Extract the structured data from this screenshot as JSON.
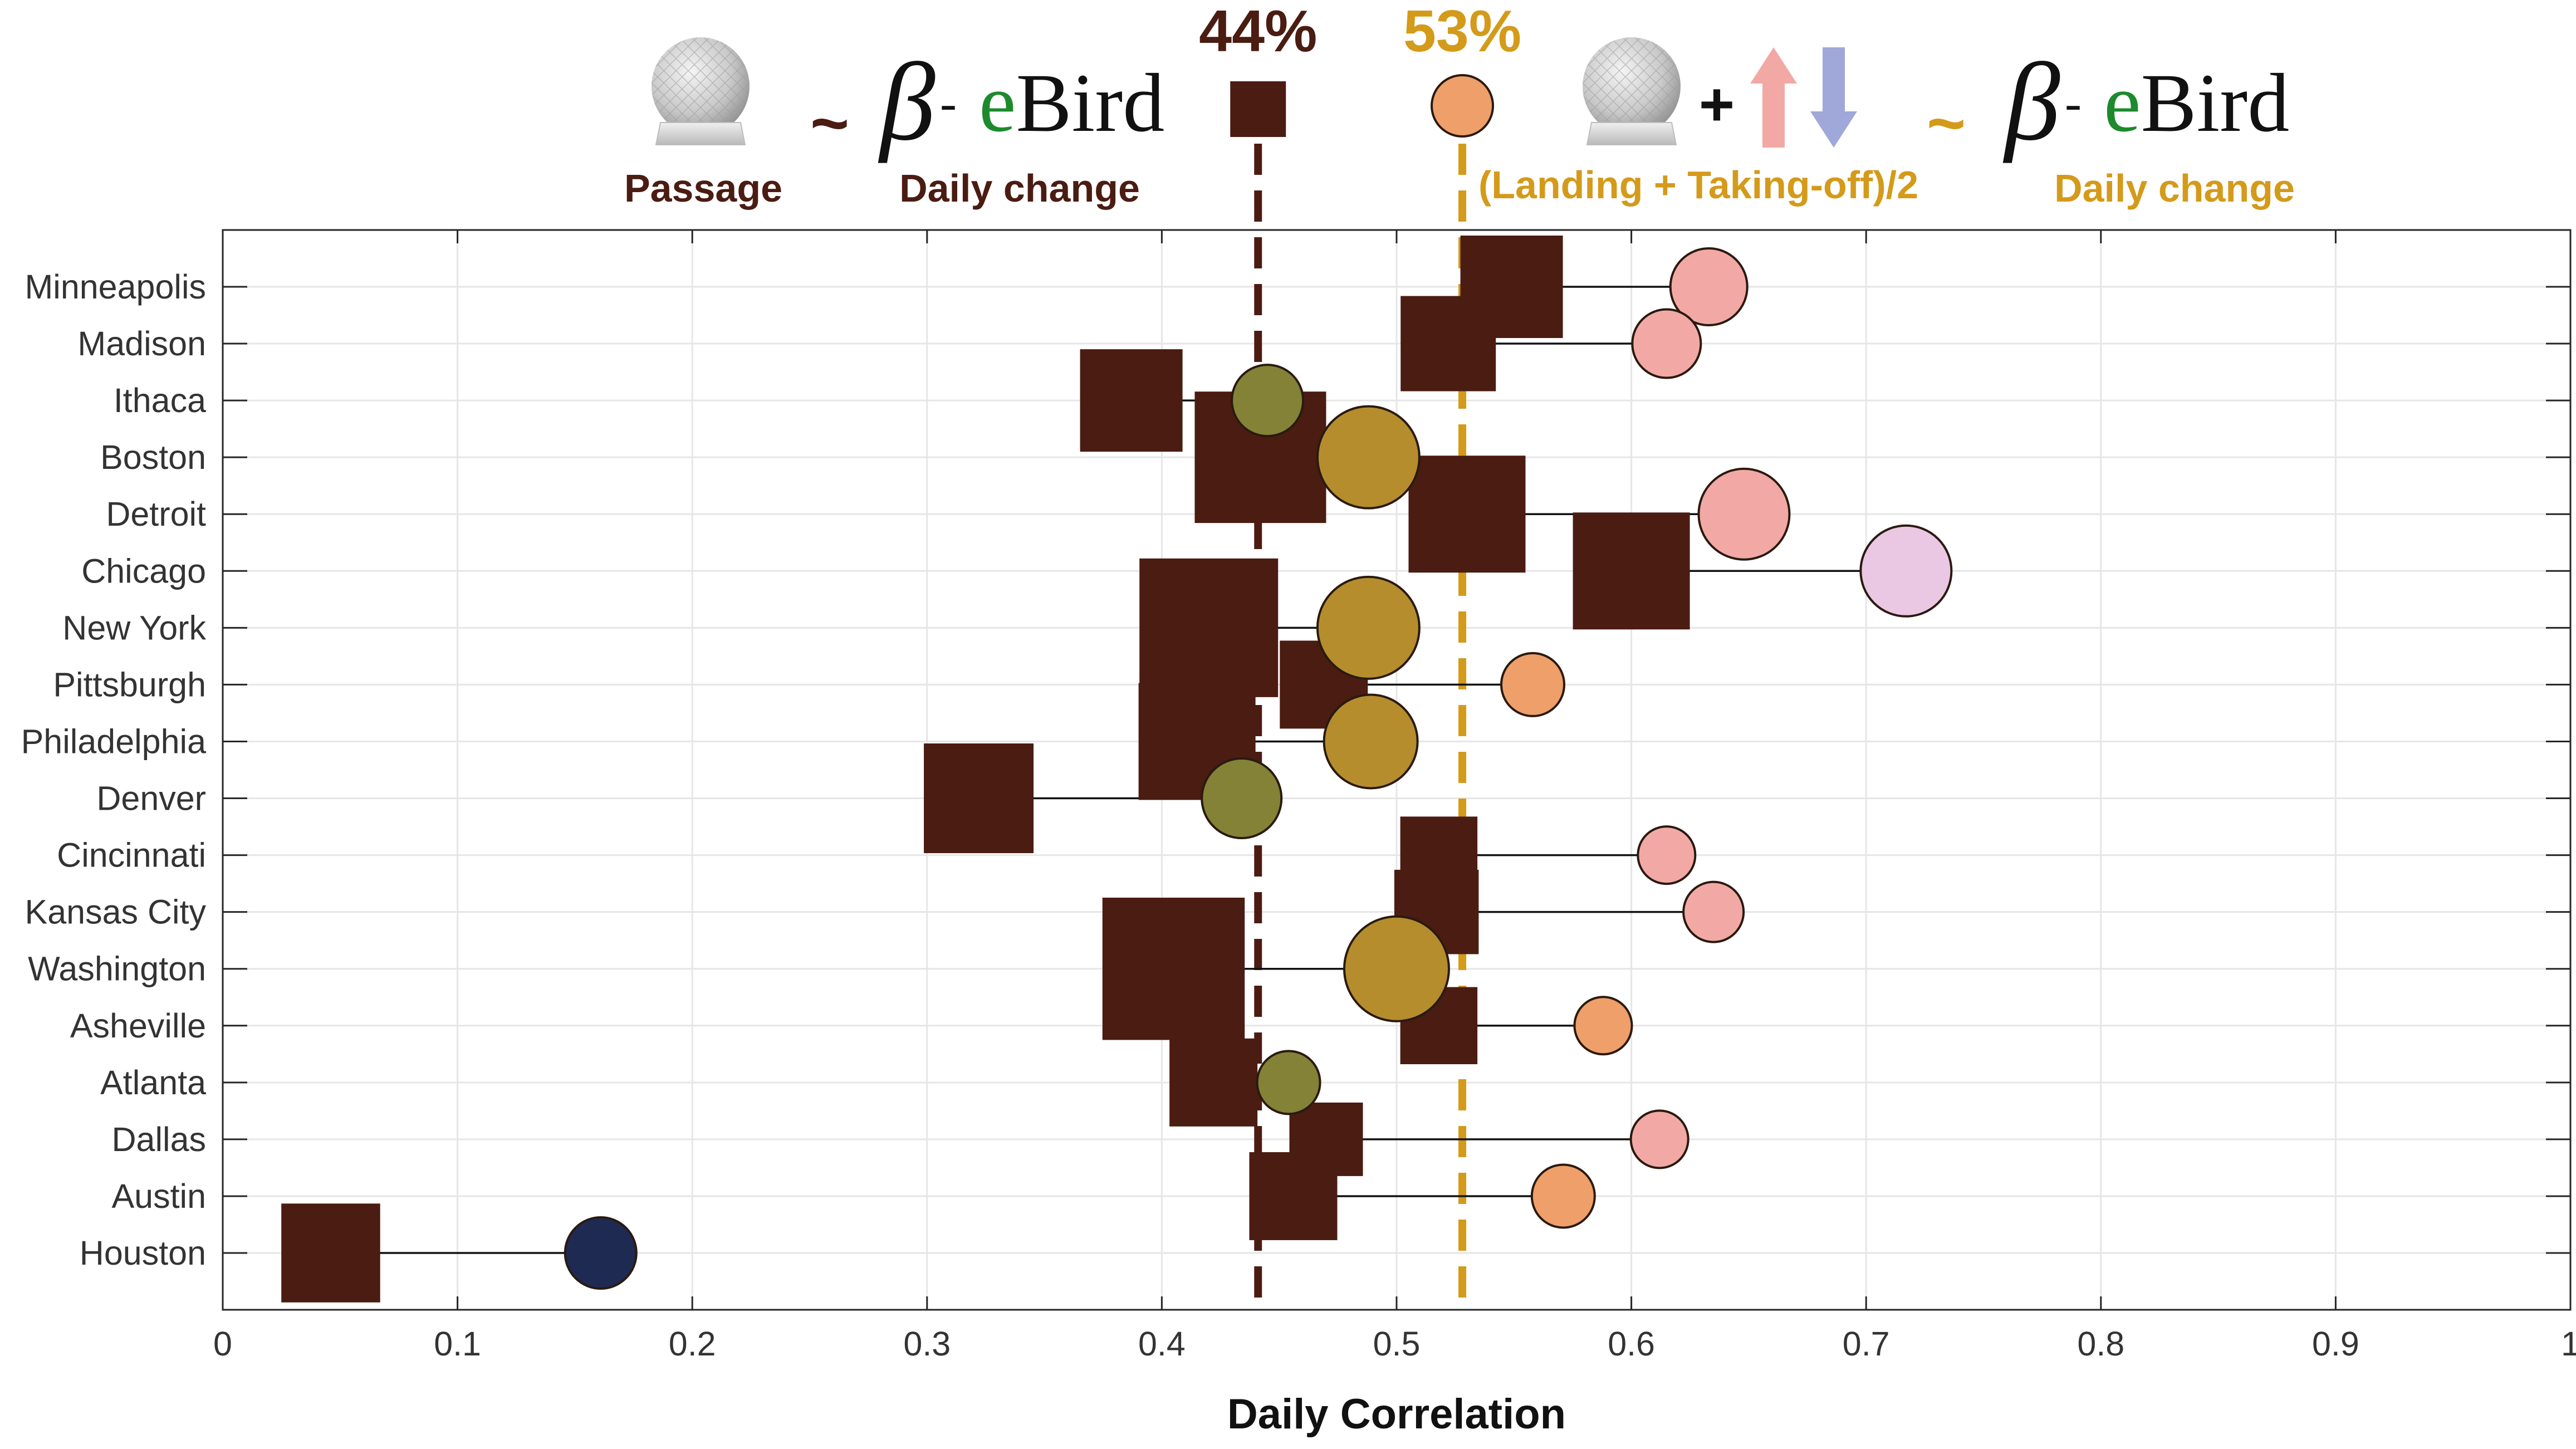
{
  "chart_data": {
    "type": "scatter",
    "xlabel": "Daily Correlation",
    "xlim": [
      0,
      1
    ],
    "x_ticks": [
      "0",
      "0.1",
      "0.2",
      "0.3",
      "0.4",
      "0.5",
      "0.6",
      "0.7",
      "0.8",
      "0.9",
      "1"
    ],
    "grid": true,
    "categories": [
      "Minneapolis",
      "Madison",
      "Ithaca",
      "Boston",
      "Detroit",
      "Chicago",
      "New York",
      "Pittsburgh",
      "Philadelphia",
      "Denver",
      "Cincinnati",
      "Kansas City",
      "Washington",
      "Asheville",
      "Atlanta",
      "Dallas",
      "Austin",
      "Houston"
    ],
    "series": [
      {
        "marker": "square",
        "color": "#4a1c12",
        "values": [
          0.549,
          0.522,
          0.387,
          0.442,
          0.53,
          0.6,
          0.42,
          0.469,
          0.415,
          0.322,
          0.518,
          0.517,
          0.405,
          0.518,
          0.422,
          0.47,
          0.456,
          0.046
        ]
      },
      {
        "marker": "circle",
        "values": [
          0.633,
          0.615,
          0.445,
          0.488,
          0.648,
          0.717,
          0.488,
          0.558,
          0.489,
          0.434,
          0.615,
          0.635,
          0.5,
          0.588,
          0.454,
          0.612,
          0.571,
          0.161
        ],
        "colors": [
          "#f2a9a5",
          "#f2a9a5",
          "#838236",
          "#b58d2d",
          "#f2a9a5",
          "#eac7e2",
          "#b58d2d",
          "#ef9f69",
          "#b58d2d",
          "#838236",
          "#f2a9a5",
          "#f2a9a5",
          "#b58d2d",
          "#ef9f69",
          "#838236",
          "#f2a9a5",
          "#ef9f69",
          "#1e2a52"
        ]
      }
    ],
    "marker_sizes": {
      "square": [
        0.8,
        0.7,
        0.8,
        1.2,
        1.0,
        1.0,
        1.3,
        0.6,
        1.0,
        0.9,
        0.45,
        0.55,
        1.35,
        0.45,
        0.6,
        0.4,
        0.6,
        0.75
      ],
      "circle": [
        0.9,
        0.75,
        0.8,
        1.35,
        1.15,
        1.15,
        1.35,
        0.65,
        1.2,
        0.95,
        0.55,
        0.6,
        1.4,
        0.55,
        0.65,
        0.55,
        0.65,
        0.8
      ]
    },
    "reference_lines": [
      {
        "x": 0.441,
        "label": "44%",
        "color": "#4a1c12"
      },
      {
        "x": 0.528,
        "label": "53%",
        "color": "#d49a1a"
      }
    ]
  },
  "legend": {
    "left": {
      "tilde": "~",
      "beta": "β",
      "dash": "-",
      "ebird_e": "e",
      "ebird_rest": "Bird",
      "label_left": "Passage",
      "label_right": "Daily change",
      "color": "#4a1c12"
    },
    "right": {
      "plus": "+",
      "tilde": "~",
      "beta": "β",
      "dash": "-",
      "ebird_e": "e",
      "ebird_rest": "Bird",
      "label_left": "(Landing + Taking-off)/2",
      "label_right": "Daily change",
      "color": "#d49a1a"
    },
    "ebird_green": "#1d8a2c",
    "arrow_up_color": "#f2a9a5",
    "arrow_down_color": "#9fa8d8",
    "icons": [
      "radar-dome-icon",
      "radar-dome-icon",
      "arrow-up-icon",
      "arrow-down-icon"
    ]
  }
}
